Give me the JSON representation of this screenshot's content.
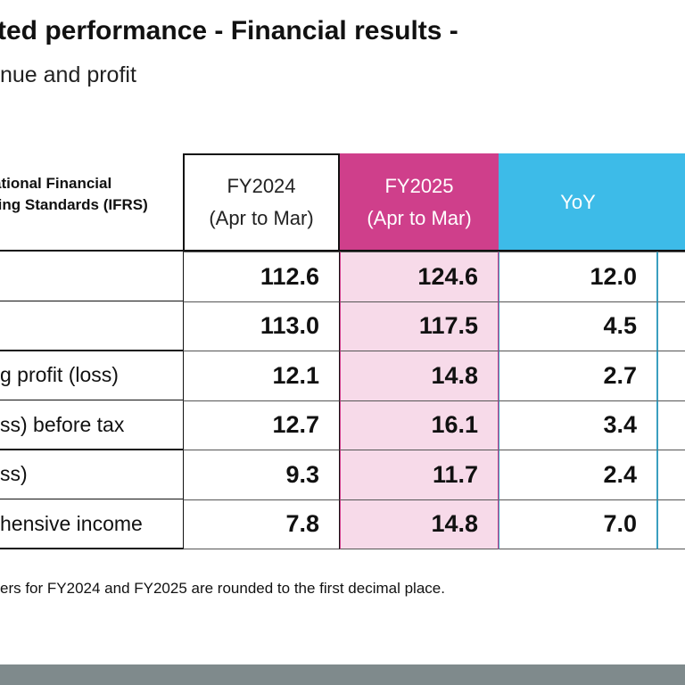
{
  "title": "ted performance - Financial results -",
  "subtitle": "nue and profit",
  "table": {
    "header_label": [
      "ational Financial",
      "ting Standards (IFRS)"
    ],
    "columns": [
      [
        "FY2024",
        "(Apr to Mar)"
      ],
      [
        "FY2025",
        "(Apr to Mar)"
      ],
      [
        "YoY"
      ]
    ],
    "rows": [
      {
        "values": [
          "112.6",
          "124.6",
          "12.0"
        ]
      },
      {
        "values": [
          "113.0",
          "117.5",
          "4.5"
        ]
      },
      {
        "label": "g profit (loss)",
        "values": [
          "12.1",
          "14.8",
          "2.7"
        ]
      },
      {
        "label": "ss) before tax",
        "values": [
          "12.7",
          "16.1",
          "3.4"
        ]
      },
      {
        "label": "ss)",
        "values": [
          "9.3",
          "11.7",
          "2.4"
        ]
      },
      {
        "label": "hensive income",
        "values": [
          "7.8",
          "14.8",
          "7.0"
        ]
      }
    ]
  },
  "footnote": "ers for FY2024 and FY2025 are rounded to the first decimal place."
}
